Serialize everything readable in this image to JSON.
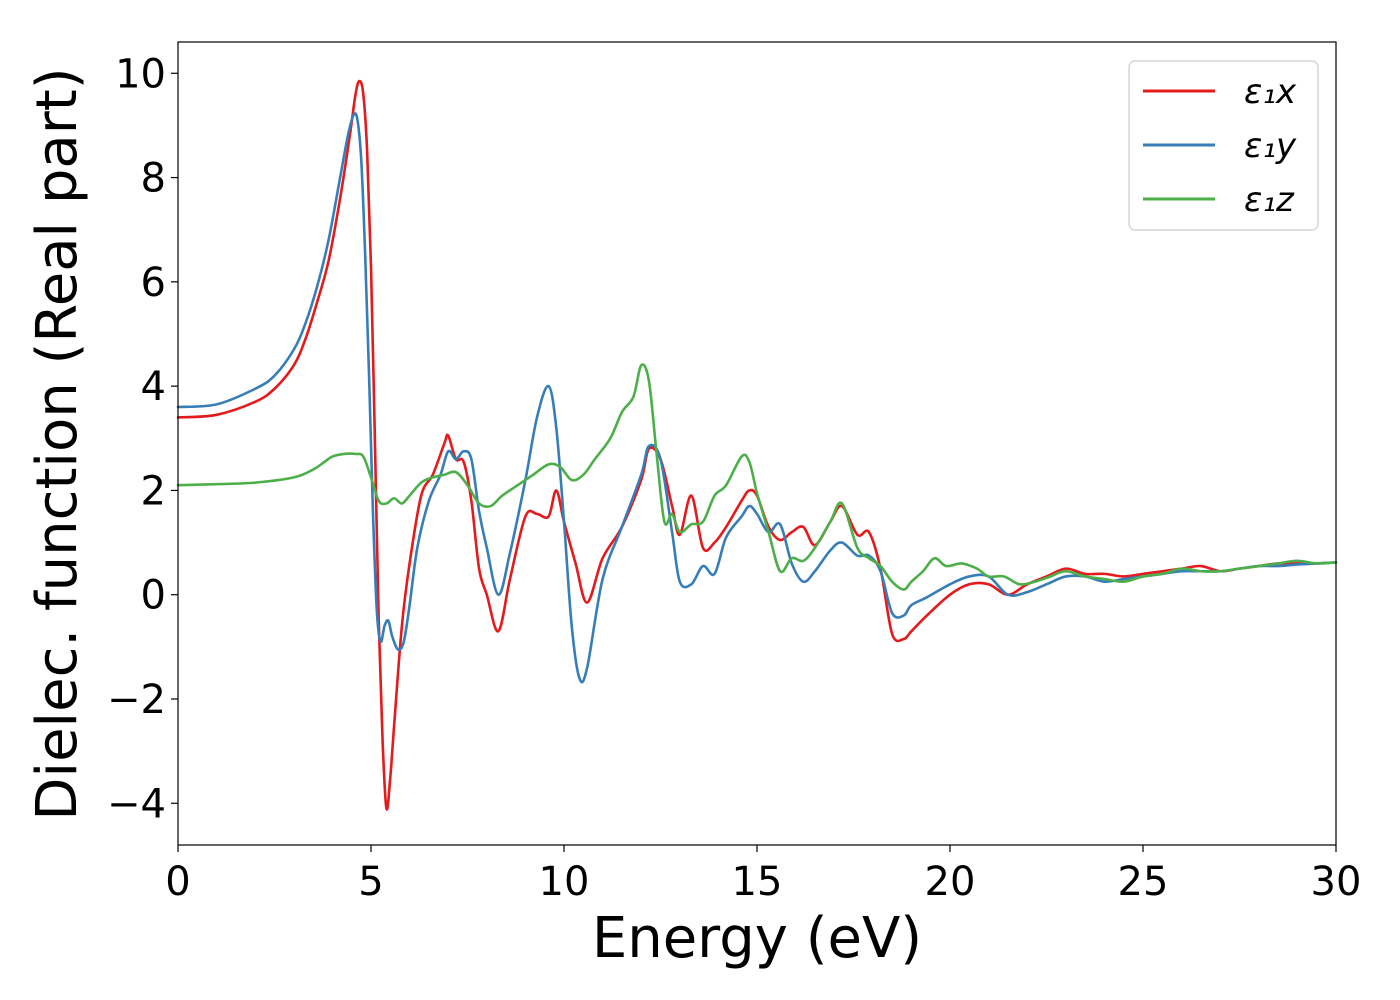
{
  "chart_data": {
    "type": "line",
    "xlabel": "Energy (eV)",
    "ylabel": "Dielec. function (Real part)",
    "xlim": [
      0,
      30
    ],
    "ylim": [
      -4.8,
      10.6
    ],
    "xticks": [
      0,
      5,
      10,
      15,
      20,
      25,
      30
    ],
    "xtick_labels": [
      "0",
      "5",
      "10",
      "15",
      "20",
      "25",
      "30"
    ],
    "yticks": [
      -4,
      -2,
      0,
      2,
      4,
      6,
      8,
      10
    ],
    "ytick_labels": [
      "−4",
      "−2",
      "0",
      "2",
      "4",
      "6",
      "8",
      "10"
    ],
    "grid": false,
    "legend_position": "top-right",
    "series": [
      {
        "name": "ε₁x",
        "color": "#e41a1c",
        "x": [
          0,
          1,
          2,
          2.5,
          3,
          3.3,
          3.6,
          3.9,
          4.2,
          4.45,
          4.6,
          4.7,
          4.8,
          4.9,
          5.0,
          5.1,
          5.2,
          5.3,
          5.4,
          5.5,
          5.6,
          5.8,
          6.0,
          6.3,
          6.6,
          6.9,
          7.0,
          7.2,
          7.4,
          7.6,
          7.8,
          8.0,
          8.3,
          8.6,
          9.0,
          9.3,
          9.6,
          9.8,
          10.0,
          10.3,
          10.6,
          11.0,
          11.5,
          12.0,
          12.2,
          12.5,
          12.8,
          13.0,
          13.3,
          13.6,
          13.9,
          14.2,
          14.6,
          14.8,
          15.0,
          15.3,
          15.6,
          15.9,
          16.2,
          16.5,
          16.9,
          17.2,
          17.6,
          17.9,
          18.2,
          18.5,
          18.8,
          19.0,
          19.4,
          20.0,
          20.5,
          21.0,
          21.5,
          22.0,
          22.5,
          23.0,
          23.5,
          24.0,
          24.5,
          25.0,
          25.5,
          26.0,
          26.5,
          27.0,
          27.5,
          28.0,
          28.5,
          29.0,
          29.5,
          30.0
        ],
        "y": [
          3.4,
          3.45,
          3.7,
          3.95,
          4.4,
          4.9,
          5.6,
          6.4,
          7.6,
          8.8,
          9.6,
          9.85,
          9.6,
          8.5,
          6.3,
          3.0,
          -0.5,
          -2.8,
          -4.1,
          -3.5,
          -2.5,
          -0.6,
          0.6,
          1.9,
          2.3,
          2.9,
          3.05,
          2.6,
          2.55,
          1.8,
          0.5,
          0.0,
          -0.7,
          0.3,
          1.5,
          1.55,
          1.5,
          2.0,
          1.4,
          0.6,
          -0.15,
          0.7,
          1.3,
          2.2,
          2.8,
          2.6,
          1.7,
          1.15,
          1.9,
          0.9,
          1.0,
          1.3,
          1.8,
          2.0,
          1.9,
          1.3,
          1.05,
          1.2,
          1.3,
          0.95,
          1.4,
          1.7,
          1.15,
          1.2,
          0.5,
          -0.75,
          -0.85,
          -0.7,
          -0.4,
          0.0,
          0.2,
          0.2,
          0.0,
          0.2,
          0.35,
          0.5,
          0.4,
          0.4,
          0.35,
          0.4,
          0.45,
          0.5,
          0.55,
          0.45,
          0.5,
          0.55,
          0.6,
          0.6,
          0.6,
          0.62
        ]
      },
      {
        "name": "ε₁y",
        "color": "#377eb8",
        "x": [
          0,
          1,
          2,
          2.5,
          3,
          3.3,
          3.6,
          3.9,
          4.2,
          4.4,
          4.55,
          4.65,
          4.75,
          4.85,
          4.95,
          5.05,
          5.15,
          5.25,
          5.35,
          5.45,
          5.55,
          5.7,
          5.85,
          6.0,
          6.2,
          6.5,
          6.8,
          7.0,
          7.2,
          7.4,
          7.6,
          7.8,
          8.0,
          8.3,
          8.6,
          9.0,
          9.3,
          9.6,
          9.8,
          10.0,
          10.2,
          10.4,
          10.6,
          11.0,
          11.5,
          12.0,
          12.2,
          12.5,
          12.8,
          13.0,
          13.3,
          13.6,
          13.9,
          14.2,
          14.6,
          14.8,
          15.0,
          15.3,
          15.6,
          15.9,
          16.2,
          16.5,
          16.9,
          17.2,
          17.6,
          17.9,
          18.2,
          18.5,
          18.8,
          19.0,
          19.4,
          20.0,
          20.5,
          21.0,
          21.5,
          22.0,
          22.5,
          23.0,
          23.5,
          24.0,
          24.5,
          25.0,
          25.5,
          26.0,
          26.5,
          27.0,
          27.5,
          28.0,
          28.5,
          29.0,
          29.5,
          30.0
        ],
        "y": [
          3.6,
          3.65,
          3.95,
          4.2,
          4.7,
          5.2,
          5.9,
          6.8,
          8.0,
          8.8,
          9.2,
          9.1,
          8.3,
          6.5,
          4.2,
          1.6,
          -0.3,
          -0.9,
          -0.6,
          -0.5,
          -0.8,
          -1.05,
          -0.9,
          -0.2,
          0.9,
          1.8,
          2.3,
          2.75,
          2.6,
          2.75,
          2.6,
          1.6,
          0.9,
          0.0,
          0.8,
          2.2,
          3.4,
          4.0,
          3.2,
          1.4,
          -0.6,
          -1.6,
          -1.4,
          0.3,
          1.3,
          2.3,
          2.85,
          2.6,
          1.2,
          0.25,
          0.2,
          0.55,
          0.4,
          1.1,
          1.5,
          1.7,
          1.55,
          1.2,
          1.35,
          0.6,
          0.25,
          0.45,
          0.85,
          1.0,
          0.75,
          0.75,
          0.45,
          -0.35,
          -0.4,
          -0.2,
          -0.05,
          0.2,
          0.35,
          0.35,
          0.0,
          0.05,
          0.2,
          0.35,
          0.35,
          0.25,
          0.3,
          0.35,
          0.4,
          0.45,
          0.45,
          0.45,
          0.5,
          0.55,
          0.55,
          0.58,
          0.6,
          0.62
        ]
      },
      {
        "name": "ε₁z",
        "color": "#4daf4a",
        "x": [
          0,
          1,
          2,
          3,
          3.5,
          3.8,
          4.0,
          4.3,
          4.6,
          4.8,
          5.0,
          5.2,
          5.4,
          5.6,
          5.8,
          6.0,
          6.3,
          6.6,
          6.9,
          7.2,
          7.5,
          7.8,
          8.1,
          8.4,
          8.8,
          9.2,
          9.6,
          9.9,
          10.2,
          10.5,
          10.8,
          11.2,
          11.5,
          11.8,
          12.0,
          12.2,
          12.4,
          12.6,
          12.8,
          13.0,
          13.3,
          13.6,
          13.9,
          14.2,
          14.6,
          14.8,
          15.0,
          15.3,
          15.6,
          15.9,
          16.2,
          16.5,
          16.9,
          17.2,
          17.6,
          17.9,
          18.2,
          18.5,
          18.8,
          19.0,
          19.3,
          19.6,
          19.9,
          20.3,
          20.7,
          21.0,
          21.4,
          21.8,
          22.2,
          22.6,
          23.0,
          23.5,
          24.0,
          24.5,
          25.0,
          25.5,
          26.0,
          26.5,
          27.0,
          27.5,
          28.0,
          28.5,
          29.0,
          29.5,
          30.0
        ],
        "y": [
          2.1,
          2.12,
          2.15,
          2.25,
          2.4,
          2.55,
          2.65,
          2.7,
          2.7,
          2.65,
          2.25,
          1.8,
          1.75,
          1.85,
          1.75,
          1.9,
          2.15,
          2.25,
          2.3,
          2.35,
          2.1,
          1.75,
          1.7,
          1.9,
          2.1,
          2.3,
          2.5,
          2.45,
          2.2,
          2.3,
          2.6,
          3.0,
          3.5,
          3.8,
          4.4,
          4.1,
          2.7,
          1.4,
          1.55,
          1.2,
          1.35,
          1.4,
          1.9,
          2.1,
          2.65,
          2.55,
          1.95,
          1.2,
          0.45,
          0.7,
          0.65,
          0.9,
          1.4,
          1.75,
          0.9,
          0.7,
          0.55,
          0.25,
          0.1,
          0.25,
          0.45,
          0.7,
          0.55,
          0.6,
          0.5,
          0.35,
          0.35,
          0.2,
          0.25,
          0.35,
          0.45,
          0.35,
          0.3,
          0.25,
          0.35,
          0.4,
          0.5,
          0.45,
          0.45,
          0.5,
          0.55,
          0.6,
          0.65,
          0.6,
          0.62
        ]
      }
    ]
  }
}
